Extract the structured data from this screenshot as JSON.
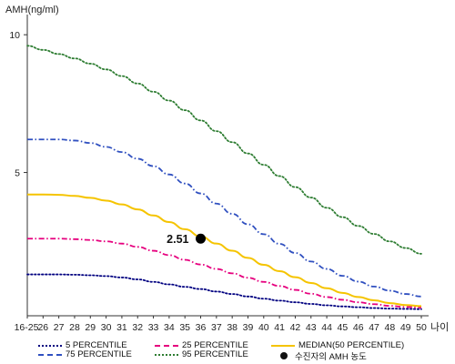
{
  "chart_data": {
    "type": "line",
    "title": "",
    "ylabel": "AMH(ng/ml)",
    "xlabel": "나이",
    "categories": [
      "16-25",
      "26",
      "27",
      "28",
      "29",
      "30",
      "31",
      "32",
      "33",
      "34",
      "35",
      "36",
      "37",
      "38",
      "39",
      "40",
      "41",
      "42",
      "43",
      "44",
      "45",
      "46",
      "47",
      "48",
      "49",
      "50"
    ],
    "ylim": [
      -0.2,
      10.6
    ],
    "yticks": [
      5,
      10
    ],
    "grid": false,
    "legend_position": "bottom",
    "series": [
      {
        "name": "5 PERCENTILE",
        "color": "#000080",
        "style": "dotted",
        "values": [
          1.3,
          1.3,
          1.3,
          1.29,
          1.27,
          1.24,
          1.19,
          1.12,
          1.03,
          0.94,
          0.85,
          0.77,
          0.68,
          0.59,
          0.5,
          0.42,
          0.35,
          0.29,
          0.23,
          0.18,
          0.14,
          0.11,
          0.08,
          0.06,
          0.05,
          0.04
        ]
      },
      {
        "name": "25 PERCENTILE",
        "color": "#e6007e",
        "style": "dashdot",
        "values": [
          2.6,
          2.6,
          2.6,
          2.58,
          2.55,
          2.5,
          2.42,
          2.3,
          2.16,
          2.0,
          1.83,
          1.66,
          1.5,
          1.34,
          1.18,
          1.03,
          0.88,
          0.74,
          0.6,
          0.48,
          0.38,
          0.29,
          0.22,
          0.16,
          0.12,
          0.1
        ]
      },
      {
        "name": "MEDIAN(50 PERCENTILE)",
        "color": "#f5c400",
        "style": "solid",
        "values": [
          4.2,
          4.2,
          4.19,
          4.15,
          4.08,
          3.98,
          3.84,
          3.66,
          3.44,
          3.2,
          2.94,
          2.68,
          2.42,
          2.16,
          1.9,
          1.65,
          1.42,
          1.2,
          0.99,
          0.8,
          0.63,
          0.48,
          0.36,
          0.26,
          0.19,
          0.15
        ]
      },
      {
        "name": "75 PERCENTILE",
        "color": "#3050c0",
        "style": "dashdot",
        "values": [
          6.2,
          6.2,
          6.2,
          6.16,
          6.07,
          5.93,
          5.74,
          5.5,
          5.23,
          4.93,
          4.6,
          4.24,
          3.87,
          3.5,
          3.12,
          2.76,
          2.41,
          2.08,
          1.77,
          1.5,
          1.25,
          1.04,
          0.86,
          0.71,
          0.59,
          0.5
        ]
      },
      {
        "name": "95 PERCENTILE",
        "color": "#2e7d32",
        "style": "dotted",
        "values": [
          9.6,
          9.45,
          9.3,
          9.14,
          8.95,
          8.74,
          8.5,
          8.23,
          7.93,
          7.61,
          7.26,
          6.89,
          6.5,
          6.1,
          5.69,
          5.28,
          4.87,
          4.47,
          4.09,
          3.72,
          3.38,
          3.06,
          2.77,
          2.5,
          2.26,
          2.05
        ]
      }
    ],
    "annotation": {
      "label": "2.51",
      "x": "36",
      "y": 2.6,
      "legend": "수진자의 AMH 농도"
    }
  }
}
